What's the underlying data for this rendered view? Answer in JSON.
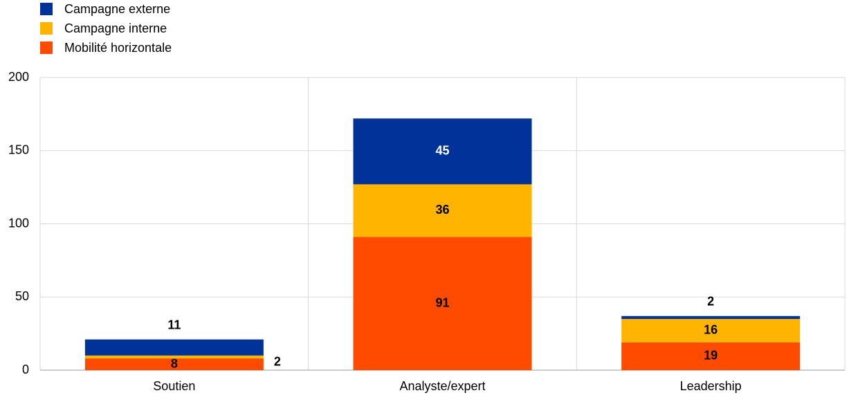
{
  "chart_data": {
    "type": "stacked-bar",
    "categories": [
      "Soutien",
      "Analyste/expert",
      "Leadership"
    ],
    "series": [
      {
        "name": "Campagne externe",
        "color": "#003299",
        "values": [
          11,
          45,
          2
        ]
      },
      {
        "name": "Campagne interne",
        "color": "#ffb400",
        "values": [
          2,
          36,
          16
        ]
      },
      {
        "name": "Mobilité horizontale",
        "color": "#ff4b00",
        "values": [
          8,
          91,
          19
        ]
      }
    ],
    "ylim": [
      0,
      200
    ],
    "yticks": [
      0,
      50,
      100,
      150,
      200
    ],
    "grid": true,
    "legend": "top-left"
  }
}
